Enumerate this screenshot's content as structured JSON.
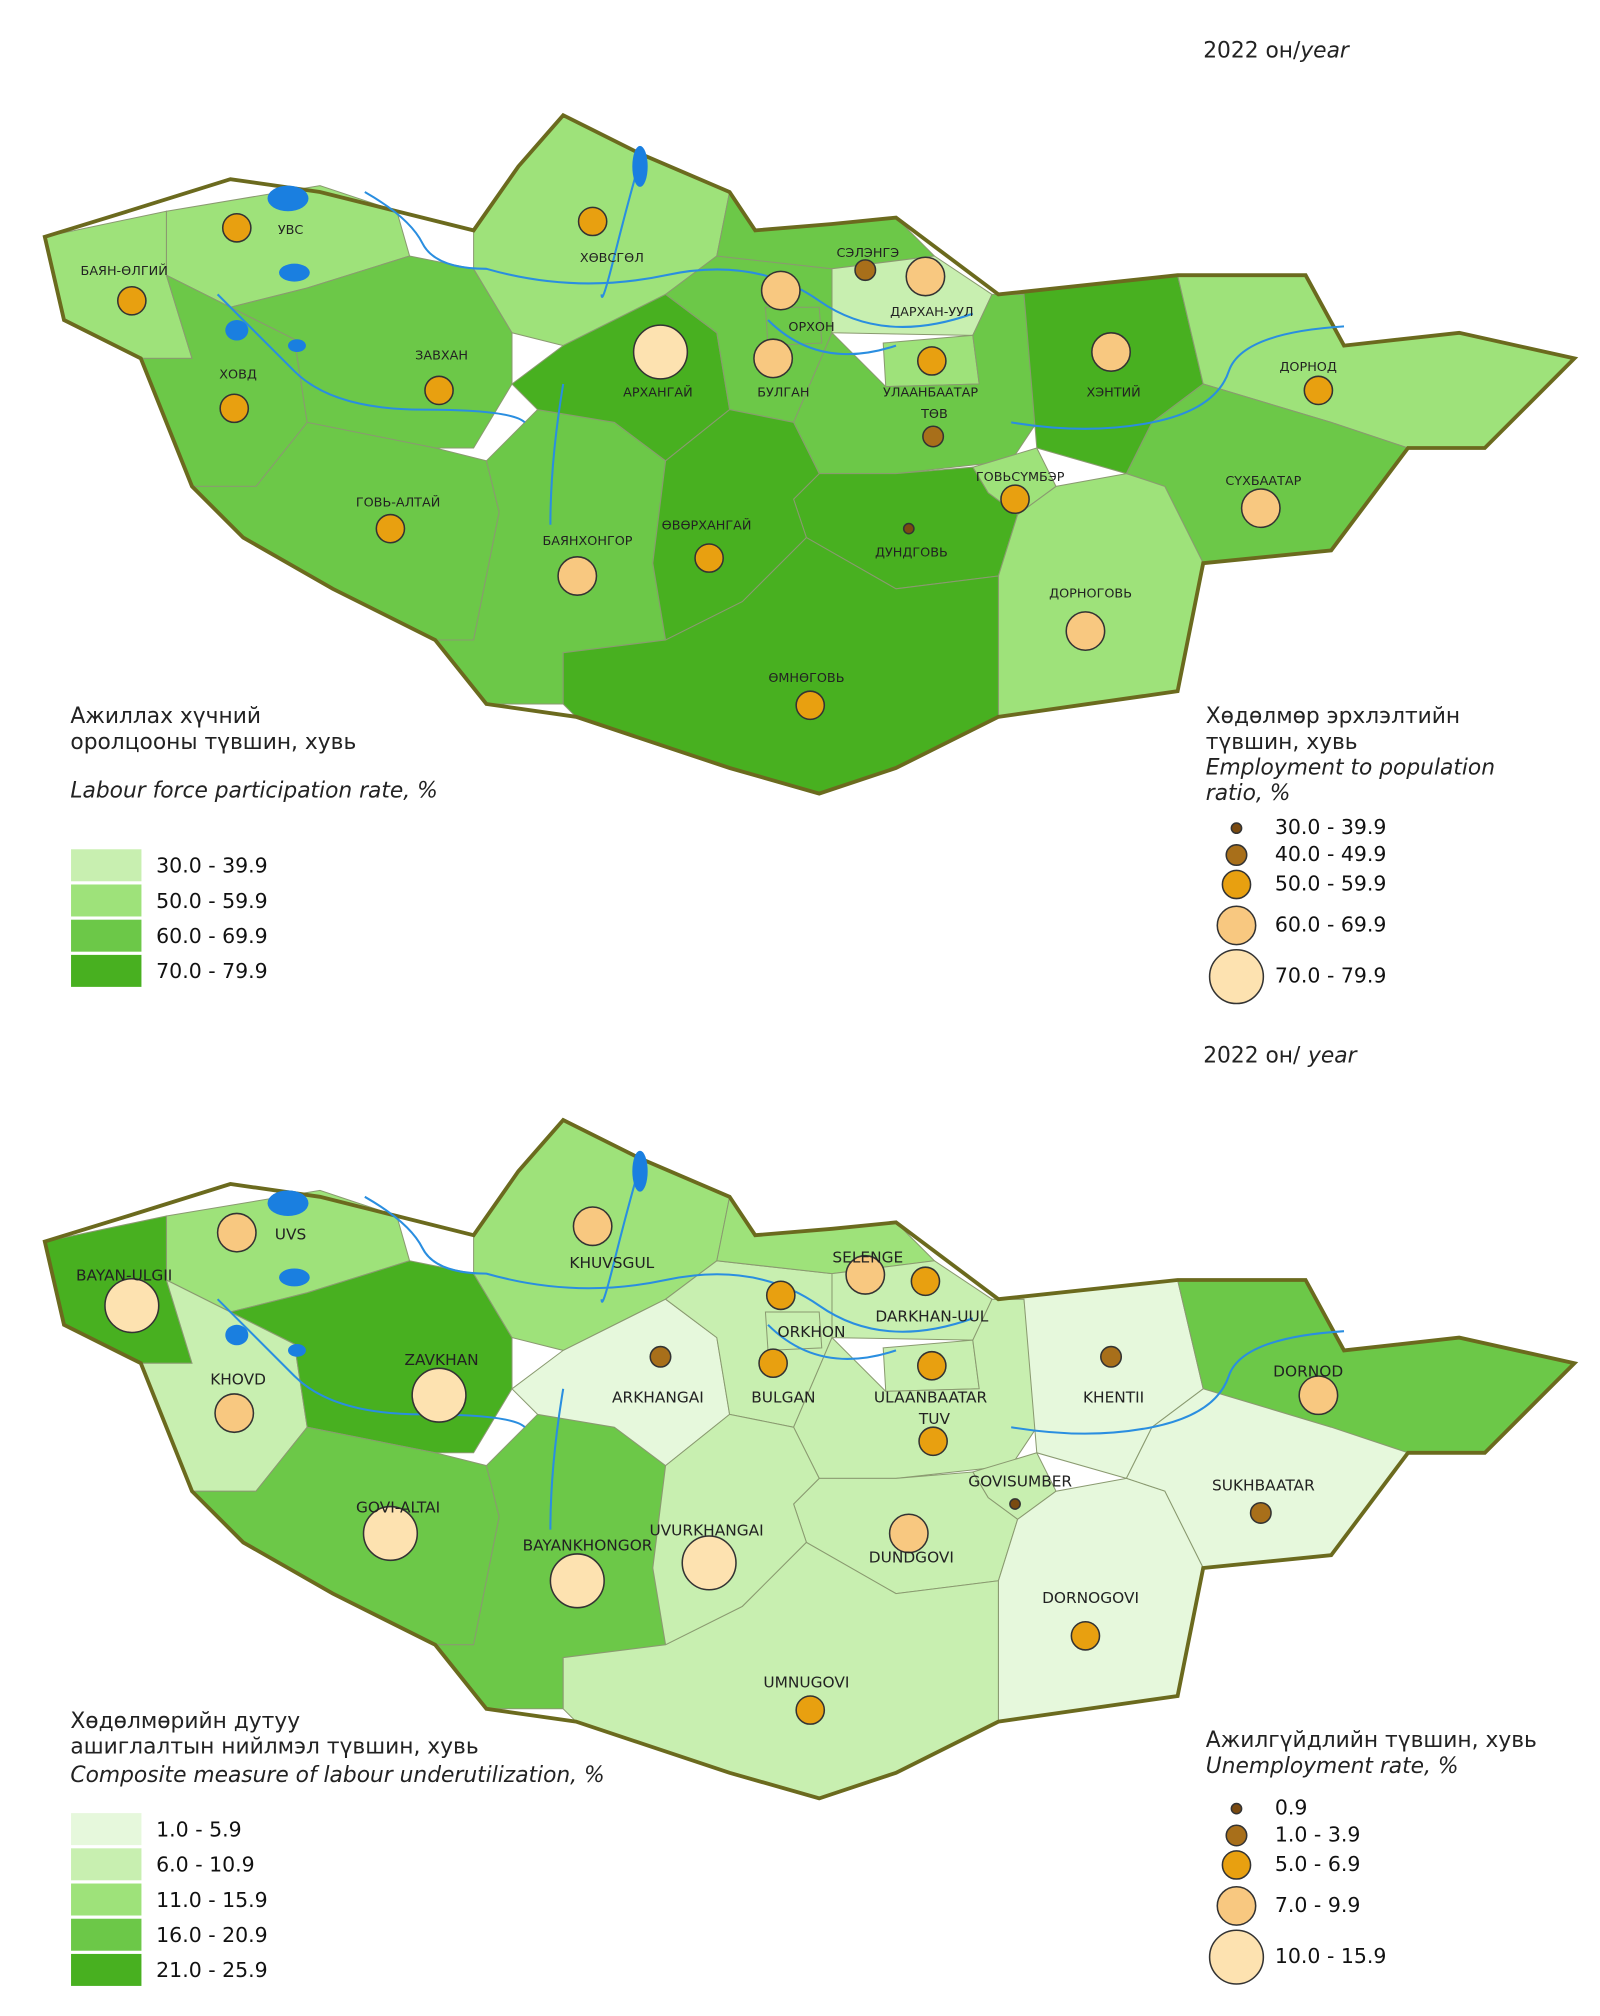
{
  "maps": [
    {
      "year": "2022 он/",
      "year_en": "year",
      "choropleth": {
        "title_lines": [
          "Ажиллах хүчний",
          "оролцооны түвшин, хувь"
        ],
        "subtitle_lines": [
          "Labour force participation rate, %"
        ],
        "classes": [
          "30.0 - 39.9",
          "50.0 - 59.9",
          "60.0 - 69.9",
          "70.0 - 79.9"
        ],
        "colors": [
          "#c8efb0",
          "#9ee27a",
          "#6cc848",
          "#48b020"
        ]
      },
      "bubbles": {
        "title_lines": [
          "Хөдөлмөр эрхлэлтийн",
          "түвшин, хувь"
        ],
        "subtitle_lines": [
          "Employment to population",
          "ratio, %"
        ],
        "classes": [
          "30.0 - 39.9",
          "40.0 - 49.9",
          "50.0 - 59.9",
          "60.0 - 69.9",
          "70.0 - 79.9"
        ],
        "colors": [
          "#7a4a10",
          "#a86f1a",
          "#e8a010",
          "#f8c880",
          "#fde2b0"
        ]
      },
      "regions": [
        {
          "label": "УВС",
          "fill_class": 1,
          "bubble_class": 2
        },
        {
          "label": "БАЯН-ӨЛГИЙ",
          "fill_class": 1,
          "bubble_class": 2
        },
        {
          "label": "ХОВД",
          "fill_class": 2,
          "bubble_class": 2
        },
        {
          "label": "ЗАВХАН",
          "fill_class": 2,
          "bubble_class": 2
        },
        {
          "label": "ХӨВСГӨЛ",
          "fill_class": 1,
          "bubble_class": 2
        },
        {
          "label": "ГОВЬ-АЛТАЙ",
          "fill_class": 2,
          "bubble_class": 2
        },
        {
          "label": "БАЯНХОНГОР",
          "fill_class": 2,
          "bubble_class": 3
        },
        {
          "label": "АРХАНГАЙ",
          "fill_class": 3,
          "bubble_class": 4
        },
        {
          "label": "БУЛГАН",
          "fill_class": 2,
          "bubble_class": 3
        },
        {
          "label": "ОРХОН",
          "fill_class": 2,
          "bubble_class": 3
        },
        {
          "label": "СЭЛЭНГЭ",
          "fill_class": 2,
          "bubble_class": 1
        },
        {
          "label": "ДАРХАН-УУЛ",
          "fill_class": 0,
          "bubble_class": 3
        },
        {
          "label": "УЛААНБААТАР",
          "fill_class": 1,
          "bubble_class": 2
        },
        {
          "label": "ТӨВ",
          "fill_class": 2,
          "bubble_class": 1
        },
        {
          "label": "ХЭНТИЙ",
          "fill_class": 3,
          "bubble_class": 3
        },
        {
          "label": "ДОРНОД",
          "fill_class": 1,
          "bubble_class": 2
        },
        {
          "label": "СҮХБААТАР",
          "fill_class": 2,
          "bubble_class": 3
        },
        {
          "label": "ГОВЬСҮМБЭР",
          "fill_class": 1,
          "bubble_class": 2
        },
        {
          "label": "ДУНДГОВЬ",
          "fill_class": 3,
          "bubble_class": 0
        },
        {
          "label": "ӨВӨРХАНГАЙ",
          "fill_class": 3,
          "bubble_class": 2
        },
        {
          "label": "ДОРНОГОВЬ",
          "fill_class": 1,
          "bubble_class": 3
        },
        {
          "label": "ӨМНӨГОВЬ",
          "fill_class": 3,
          "bubble_class": 2
        }
      ]
    },
    {
      "year": "2022 он/",
      "year_en": "year",
      "choropleth": {
        "title_lines": [
          "Хөдөлмөрийн дутуу",
          "ашиглалтын нийлмэл түвшин, хувь"
        ],
        "subtitle_lines": [
          "Composite measure of labour underutilization, %"
        ],
        "classes": [
          "1.0 - 5.9",
          "6.0 - 10.9",
          "11.0 - 15.9",
          "16.0 - 20.9",
          "21.0 - 25.9"
        ],
        "colors": [
          "#e6f8dc",
          "#c8efb0",
          "#9ee27a",
          "#6cc848",
          "#48b020"
        ]
      },
      "bubbles": {
        "title_lines": [
          "Ажилгүйдлийн түвшин, хувь"
        ],
        "subtitle_lines": [
          "Unemployment rate, %"
        ],
        "classes": [
          "0.9",
          "1.0 - 3.9",
          "5.0 - 6.9",
          "7.0 - 9.9",
          "10.0 - 15.9"
        ],
        "colors": [
          "#7a4a10",
          "#a86f1a",
          "#e8a010",
          "#f8c880",
          "#fde2b0"
        ]
      },
      "regions": [
        {
          "label": "UVS",
          "fill_class": 2,
          "bubble_class": 3
        },
        {
          "label": "BAYAN-ULGII",
          "fill_class": 4,
          "bubble_class": 4
        },
        {
          "label": "KHOVD",
          "fill_class": 1,
          "bubble_class": 3
        },
        {
          "label": "ZAVKHAN",
          "fill_class": 4,
          "bubble_class": 4
        },
        {
          "label": "KHUVSGUL",
          "fill_class": 2,
          "bubble_class": 3
        },
        {
          "label": "GOVI-ALTAI",
          "fill_class": 3,
          "bubble_class": 4
        },
        {
          "label": "BAYANKHONGOR",
          "fill_class": 3,
          "bubble_class": 4
        },
        {
          "label": "ARKHANGAI",
          "fill_class": 0,
          "bubble_class": 1
        },
        {
          "label": "BULGAN",
          "fill_class": 1,
          "bubble_class": 2
        },
        {
          "label": "ORKHON",
          "fill_class": 1,
          "bubble_class": 2
        },
        {
          "label": "SELENGE",
          "fill_class": 2,
          "bubble_class": 3
        },
        {
          "label": "DARKHAN-UUL",
          "fill_class": 1,
          "bubble_class": 2
        },
        {
          "label": "ULAANBAATAR",
          "fill_class": 1,
          "bubble_class": 2
        },
        {
          "label": "TUV",
          "fill_class": 1,
          "bubble_class": 2
        },
        {
          "label": "KHENTII",
          "fill_class": 0,
          "bubble_class": 1
        },
        {
          "label": "DORNOD",
          "fill_class": 3,
          "bubble_class": 3
        },
        {
          "label": "SUKHBAATAR",
          "fill_class": 0,
          "bubble_class": 1
        },
        {
          "label": "GOVISUMBER",
          "fill_class": 1,
          "bubble_class": 0
        },
        {
          "label": "DUNDGOVI",
          "fill_class": 1,
          "bubble_class": 3
        },
        {
          "label": "UVURKHANGAI",
          "fill_class": 1,
          "bubble_class": 4
        },
        {
          "label": "DORNOGOVI",
          "fill_class": 0,
          "bubble_class": 2
        },
        {
          "label": "UMNUGOVI",
          "fill_class": 1,
          "bubble_class": 2
        }
      ]
    }
  ]
}
